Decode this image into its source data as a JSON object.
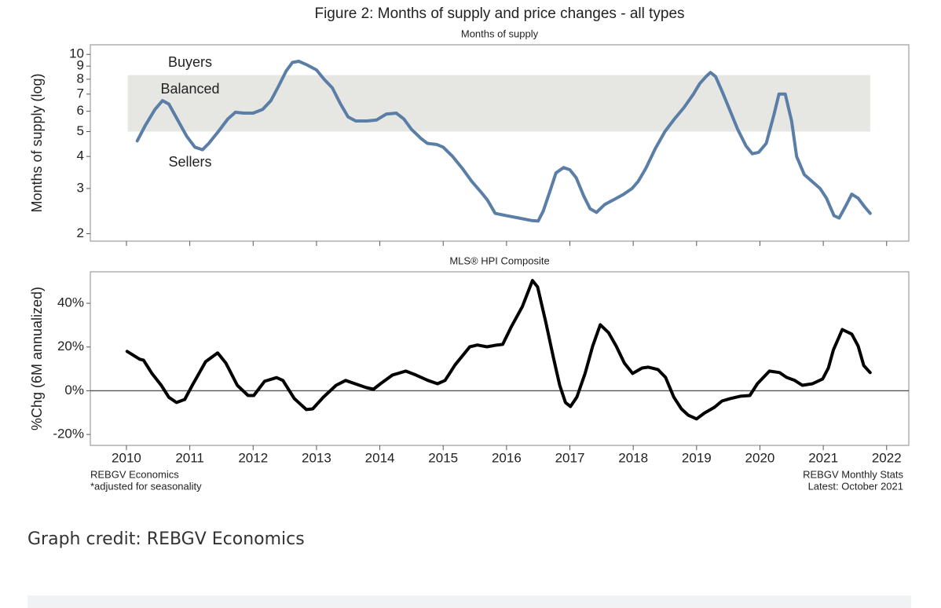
{
  "figure": {
    "title": "Figure 2: Months of supply and price changes - all types",
    "notes_left": [
      "REBGV Economics",
      "*adjusted for seasonality"
    ],
    "notes_right": [
      "REBGV Monthly Stats",
      "Latest: October 2021"
    ]
  },
  "chart_data": [
    {
      "type": "line",
      "subtitle": "Months of supply",
      "y_label": "Months of supply (log)",
      "log_y": true,
      "annotations": [
        "Buyers",
        "Balanced",
        "Sellers"
      ],
      "band": [
        5,
        8.3
      ],
      "band_color": "#e6e6e3",
      "color": "#5b7ea6",
      "xlim": [
        2009.43,
        2022.35
      ],
      "xticks": [
        2010,
        2011,
        2012,
        2013,
        2014,
        2015,
        2016,
        2017,
        2018,
        2019,
        2020,
        2021,
        2022
      ],
      "ylim": [
        1.87,
        10.9
      ],
      "yticks": [
        2,
        3,
        4,
        5,
        6,
        7,
        8,
        9,
        10
      ],
      "x": [
        2010.17,
        2010.3,
        2010.45,
        2010.57,
        2010.67,
        2010.8,
        2010.95,
        2011.08,
        2011.2,
        2011.3,
        2011.45,
        2011.6,
        2011.72,
        2011.85,
        2012.0,
        2012.15,
        2012.28,
        2012.4,
        2012.52,
        2012.62,
        2012.72,
        2012.85,
        2013.0,
        2013.12,
        2013.25,
        2013.38,
        2013.5,
        2013.62,
        2013.8,
        2013.95,
        2014.1,
        2014.26,
        2014.38,
        2014.5,
        2014.65,
        2014.75,
        2014.9,
        2015.0,
        2015.15,
        2015.3,
        2015.45,
        2015.6,
        2015.7,
        2015.82,
        2016.0,
        2016.2,
        2016.4,
        2016.5,
        2016.58,
        2016.7,
        2016.78,
        2016.9,
        2017.0,
        2017.1,
        2017.22,
        2017.32,
        2017.42,
        2017.55,
        2017.7,
        2017.85,
        2017.98,
        2018.08,
        2018.2,
        2018.35,
        2018.5,
        2018.65,
        2018.8,
        2018.95,
        2019.05,
        2019.15,
        2019.22,
        2019.3,
        2019.4,
        2019.52,
        2019.65,
        2019.78,
        2019.88,
        2019.98,
        2020.1,
        2020.22,
        2020.3,
        2020.4,
        2020.5,
        2020.58,
        2020.7,
        2020.82,
        2020.95,
        2021.05,
        2021.17,
        2021.25,
        2021.35,
        2021.45,
        2021.55,
        2021.65,
        2021.74
      ],
      "values": [
        4.6,
        5.3,
        6.1,
        6.6,
        6.4,
        5.6,
        4.8,
        4.35,
        4.25,
        4.5,
        5.0,
        5.6,
        5.95,
        5.9,
        5.9,
        6.1,
        6.6,
        7.5,
        8.6,
        9.3,
        9.4,
        9.1,
        8.7,
        8.0,
        7.4,
        6.4,
        5.7,
        5.5,
        5.5,
        5.55,
        5.85,
        5.9,
        5.6,
        5.1,
        4.7,
        4.5,
        4.45,
        4.35,
        4.0,
        3.6,
        3.2,
        2.9,
        2.7,
        2.4,
        2.35,
        2.3,
        2.25,
        2.24,
        2.45,
        3.0,
        3.45,
        3.62,
        3.55,
        3.3,
        2.8,
        2.5,
        2.42,
        2.6,
        2.72,
        2.85,
        3.0,
        3.2,
        3.6,
        4.3,
        5.0,
        5.6,
        6.2,
        7.0,
        7.7,
        8.2,
        8.5,
        8.2,
        7.2,
        6.1,
        5.1,
        4.4,
        4.1,
        4.15,
        4.5,
        5.8,
        7.0,
        7.0,
        5.5,
        4.0,
        3.4,
        3.2,
        3.0,
        2.75,
        2.35,
        2.3,
        2.55,
        2.85,
        2.75,
        2.55,
        2.4
      ]
    },
    {
      "type": "line",
      "subtitle": "MLS® HPI Composite",
      "y_label": "%Chg (6M annualized)",
      "log_y": false,
      "reference_line": 0,
      "color": "#000000",
      "xlim": [
        2009.43,
        2022.35
      ],
      "xticks": [
        2010,
        2011,
        2012,
        2013,
        2014,
        2015,
        2016,
        2017,
        2018,
        2019,
        2020,
        2021,
        2022
      ],
      "ylim": [
        -25,
        54.4
      ],
      "yticks": [
        {
          "value": -20,
          "label": "-20%"
        },
        {
          "value": 0,
          "label": "0%"
        },
        {
          "value": 20,
          "label": "20%"
        },
        {
          "value": 40,
          "label": "40%"
        }
      ],
      "x": [
        2010.01,
        2010.21,
        2010.27,
        2010.4,
        2010.55,
        2010.67,
        2010.79,
        2010.92,
        2011.04,
        2011.25,
        2011.44,
        2011.57,
        2011.75,
        2011.92,
        2012.01,
        2012.18,
        2012.37,
        2012.47,
        2012.65,
        2012.84,
        2012.94,
        2013.11,
        2013.31,
        2013.46,
        2013.68,
        2013.79,
        2013.9,
        2014.01,
        2014.2,
        2014.41,
        2014.57,
        2014.76,
        2014.91,
        2015.03,
        2015.19,
        2015.42,
        2015.54,
        2015.69,
        2015.85,
        2015.94,
        2016.08,
        2016.25,
        2016.41,
        2016.49,
        2016.62,
        2016.74,
        2016.84,
        2016.93,
        2017.01,
        2017.11,
        2017.24,
        2017.36,
        2017.48,
        2017.61,
        2017.73,
        2017.86,
        2017.99,
        2018.14,
        2018.24,
        2018.39,
        2018.51,
        2018.64,
        2018.76,
        2018.87,
        2019.0,
        2019.13,
        2019.28,
        2019.4,
        2019.53,
        2019.69,
        2019.84,
        2019.96,
        2020.15,
        2020.31,
        2020.42,
        2020.55,
        2020.67,
        2020.83,
        2020.99,
        2021.08,
        2021.16,
        2021.3,
        2021.45,
        2021.55,
        2021.64,
        2021.74
      ],
      "values": [
        18,
        14.4,
        14,
        8,
        2.5,
        -3,
        -5.4,
        -4,
        2.5,
        13.3,
        17.3,
        12.6,
        2.5,
        -2.2,
        -2.2,
        4.3,
        6,
        4.7,
        -3.6,
        -8.6,
        -8.3,
        -2.9,
        2.5,
        4.7,
        2.5,
        1.4,
        0.7,
        3.2,
        7.2,
        9,
        7.2,
        4.7,
        3.2,
        4.7,
        11.9,
        20.1,
        20.9,
        20.1,
        20.9,
        21.2,
        29.5,
        38.5,
        50.4,
        47.5,
        31.3,
        15.1,
        2.5,
        -5.4,
        -7.2,
        -2.9,
        7.9,
        20.5,
        30.2,
        26.6,
        20.5,
        12.6,
        7.9,
        10.4,
        10.8,
        9.7,
        6.1,
        -2.9,
        -8.3,
        -11.2,
        -12.9,
        -10.1,
        -7.6,
        -4.7,
        -3.6,
        -2.5,
        -2.2,
        3.2,
        9,
        8.3,
        6.1,
        4.7,
        2.5,
        3.2,
        5.4,
        10.4,
        18.7,
        28,
        25.9,
        20.5,
        11.5,
        8.3
      ]
    }
  ],
  "credit": "Graph credit: REBGV Economics"
}
